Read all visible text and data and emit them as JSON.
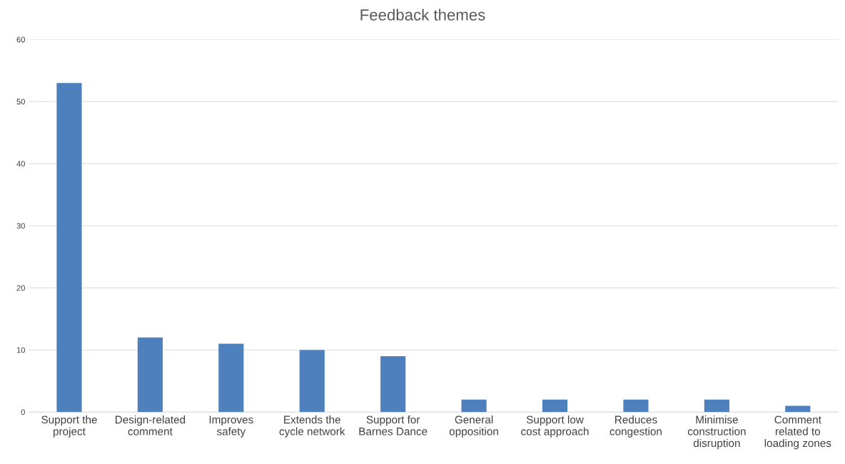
{
  "chart_data": {
    "type": "bar",
    "title": "Feedback themes",
    "categories": [
      "Support the\nproject",
      "Design-related\ncomment",
      "Improves\nsafety",
      "Extends the\ncycle network",
      "Support for\nBarnes Dance",
      "General\nopposition",
      "Support low\ncost approach",
      "Reduces\ncongestion",
      "Minimise\nconstruction\ndisruption",
      "Comment\nrelated to\nloading zones"
    ],
    "values": [
      53,
      12,
      11,
      10,
      9,
      2,
      2,
      2,
      2,
      1
    ],
    "color": "#4e80bd",
    "ylim": [
      0,
      60
    ],
    "yticks": [
      0,
      10,
      20,
      30,
      40,
      50,
      60
    ],
    "grid": "y"
  }
}
